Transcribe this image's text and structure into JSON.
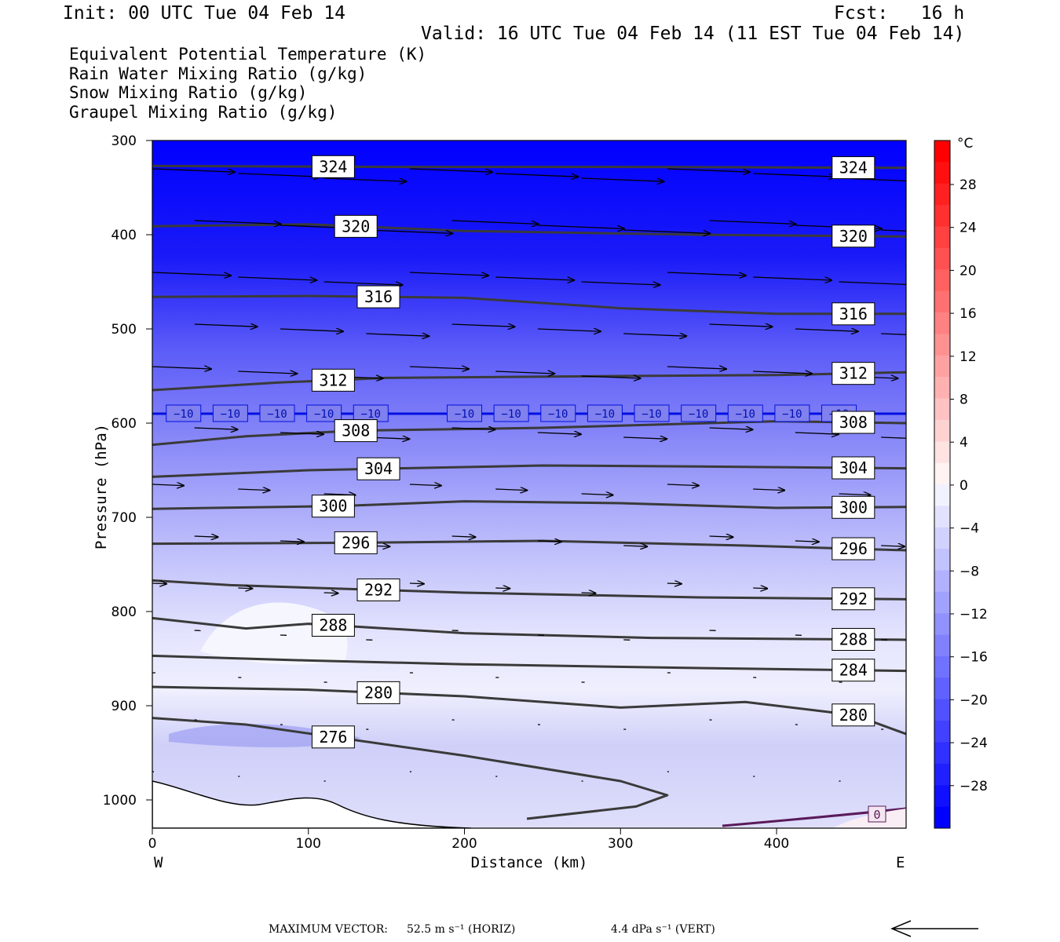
{
  "header": {
    "init": "Init: 00 UTC Tue 04 Feb 14",
    "fcst": "Fcst:   16 h",
    "valid": "Valid: 16 UTC Tue 04 Feb 14 (11 EST Tue 04 Feb 14)"
  },
  "fields": [
    {
      "label": "Equivalent Potential Temperature (K)",
      "color": "#555555"
    },
    {
      "label": "Rain Water Mixing Ratio (g/kg)",
      "color": "#008000"
    },
    {
      "label": "Snow Mixing Ratio (g/kg)",
      "color": "#f08a4b"
    },
    {
      "label": "Graupel Mixing Ratio (g/kg)",
      "color": "#ee82ee"
    }
  ],
  "colorbar": {
    "unit": "°C",
    "labels": [
      "28",
      "24",
      "20",
      "16",
      "12",
      "8",
      "4",
      "0",
      "−4",
      "−8",
      "−12",
      "−16",
      "−20",
      "−24",
      "−28"
    ]
  },
  "footer": {
    "max_vector_label": "MAXIMUM VECTOR:",
    "horiz": "52.5 m s⁻¹ (HORIZ)",
    "vert": "4.4 dPa s⁻¹ (VERT)"
  },
  "chart_data": {
    "type": "cross-section",
    "xlabel": "Distance (km)",
    "ylabel": "Pressure (hPa)",
    "xlim": [
      0,
      483
    ],
    "ylim": [
      300,
      1030
    ],
    "y_scale": "linear, inverted",
    "x_ticks": [
      "0",
      "100",
      "200",
      "300",
      "400"
    ],
    "x_tick_values": [
      0,
      100,
      200,
      300,
      400
    ],
    "y_ticks": [
      "300",
      "400",
      "500",
      "600",
      "700",
      "800",
      "900",
      "1000"
    ],
    "y_tick_values": [
      300,
      400,
      500,
      600,
      700,
      800,
      900,
      1000
    ],
    "left_end": "W",
    "right_end": "E",
    "freezing_level_label": "−10",
    "theta_e_contours": [
      {
        "label": "324",
        "points": [
          [
            0,
            327
          ],
          [
            150,
            328
          ],
          [
            300,
            328
          ],
          [
            483,
            329
          ]
        ]
      },
      {
        "label": "320",
        "points": [
          [
            0,
            391
          ],
          [
            100,
            389
          ],
          [
            200,
            396
          ],
          [
            350,
            400
          ],
          [
            483,
            402
          ]
        ]
      },
      {
        "label": "316",
        "points": [
          [
            0,
            466
          ],
          [
            100,
            465
          ],
          [
            200,
            467
          ],
          [
            300,
            478
          ],
          [
            400,
            484
          ],
          [
            483,
            484
          ]
        ]
      },
      {
        "label": "312",
        "points": [
          [
            0,
            565
          ],
          [
            80,
            557
          ],
          [
            150,
            552
          ],
          [
            300,
            550
          ],
          [
            400,
            549
          ],
          [
            483,
            546
          ]
        ]
      },
      {
        "label": "308",
        "points": [
          [
            0,
            623
          ],
          [
            60,
            614
          ],
          [
            130,
            608
          ],
          [
            250,
            605
          ],
          [
            400,
            598
          ],
          [
            483,
            600
          ]
        ]
      },
      {
        "label": "304",
        "points": [
          [
            0,
            657
          ],
          [
            100,
            650
          ],
          [
            250,
            645
          ],
          [
            350,
            646
          ],
          [
            483,
            648
          ]
        ]
      },
      {
        "label": "300",
        "points": [
          [
            0,
            691
          ],
          [
            120,
            688
          ],
          [
            200,
            683
          ],
          [
            300,
            685
          ],
          [
            400,
            690
          ],
          [
            483,
            689
          ]
        ]
      },
      {
        "label": "296",
        "points": [
          [
            0,
            728
          ],
          [
            130,
            727
          ],
          [
            250,
            725
          ],
          [
            380,
            730
          ],
          [
            483,
            735
          ]
        ]
      },
      {
        "label": "292",
        "points": [
          [
            0,
            767
          ],
          [
            50,
            772
          ],
          [
            200,
            780
          ],
          [
            350,
            785
          ],
          [
            483,
            787
          ]
        ]
      },
      {
        "label": "288",
        "points": [
          [
            0,
            807
          ],
          [
            60,
            818
          ],
          [
            100,
            813
          ],
          [
            200,
            823
          ],
          [
            320,
            828
          ],
          [
            483,
            830
          ]
        ]
      },
      {
        "label": "284",
        "points": [
          [
            0,
            847
          ],
          [
            100,
            852
          ],
          [
            200,
            856
          ],
          [
            350,
            860
          ],
          [
            483,
            863
          ]
        ]
      },
      {
        "label": "280",
        "points": [
          [
            0,
            880
          ],
          [
            100,
            883
          ],
          [
            200,
            890
          ],
          [
            300,
            902
          ],
          [
            380,
            896
          ],
          [
            450,
            910
          ],
          [
            483,
            930
          ]
        ]
      },
      {
        "label": "276",
        "points": [
          [
            0,
            913
          ],
          [
            60,
            920
          ],
          [
            200,
            953
          ],
          [
            300,
            980
          ],
          [
            330,
            995
          ],
          [
            310,
            1007
          ],
          [
            240,
            1020
          ]
        ]
      }
    ],
    "zero_isotherm_near_surface": {
      "label": "0"
    }
  }
}
